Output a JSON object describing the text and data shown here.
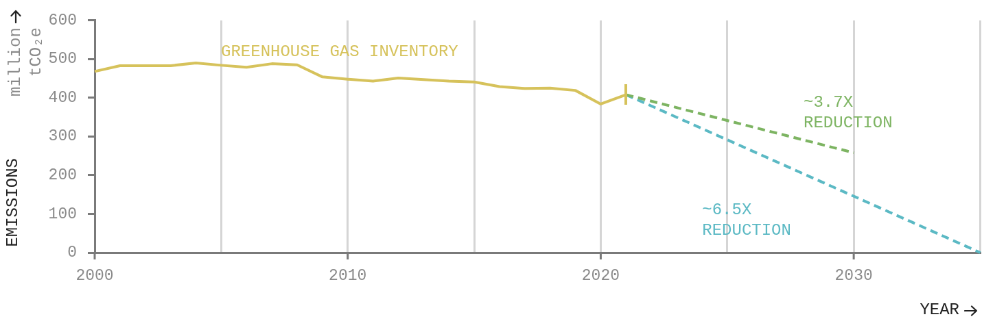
{
  "chart_data": {
    "type": "line",
    "xlabel": "YEAR",
    "ylabel": "EMISSIONS",
    "annotations": [
      "million tCO₂e"
    ],
    "xlim": [
      2000,
      2035
    ],
    "xticks": [
      2000,
      {
        "value": 2005,
        "label": null
      },
      2010,
      {
        "value": 2015,
        "label": null
      },
      2020,
      {
        "value": 2025,
        "label": null
      },
      2030,
      {
        "value": 2035,
        "label": null
      }
    ],
    "ylim": [
      0,
      600
    ],
    "yticks": [
      0,
      100,
      200,
      300,
      400,
      500,
      600
    ],
    "grid": "x",
    "series": [
      {
        "name": "GREENHOUSE GAS INVENTORY",
        "color": "#d6c25b",
        "x": [
          2000,
          2001,
          2002,
          2003,
          2004,
          2005,
          2006,
          2007,
          2008,
          2009,
          2010,
          2011,
          2012,
          2013,
          2014,
          2015,
          2016,
          2017,
          2018,
          2019,
          2020,
          2021
        ],
        "values": [
          468,
          483,
          483,
          483,
          490,
          484,
          479,
          488,
          485,
          454,
          448,
          443,
          451,
          447,
          443,
          441,
          429,
          424,
          425,
          419,
          384,
          408
        ]
      },
      {
        "name": "~3.7X REDUCTION",
        "color": "#7db462",
        "line_style": "dashed",
        "x": [
          2021,
          2030
        ],
        "values": [
          408,
          258
        ]
      },
      {
        "name": "~6.5X REDUCTION",
        "color": "#5bb9c4",
        "line_style": "dashed",
        "x": [
          2021,
          2035
        ],
        "values": [
          408,
          0
        ]
      }
    ]
  }
}
